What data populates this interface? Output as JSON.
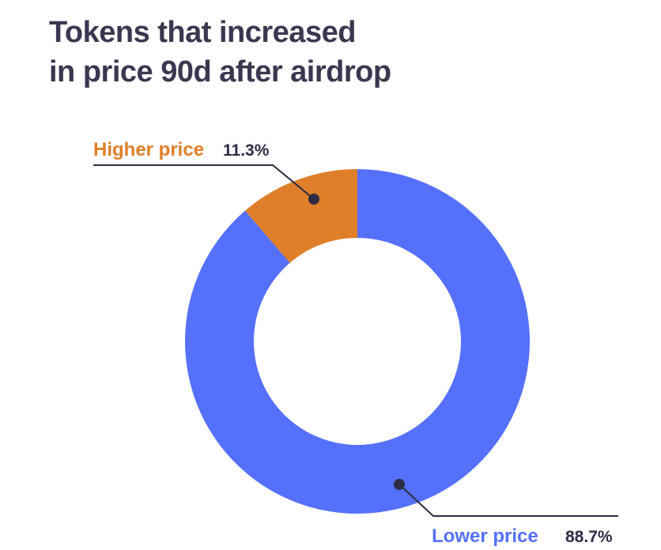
{
  "title": {
    "line1": "Tokens that increased",
    "line2": "in price 90d after airdrop"
  },
  "colors": {
    "title": "#3a3850",
    "higher": "#e07f29",
    "lower": "#5570fb",
    "leader": "#2e2c45",
    "value_text": "#2e2c45"
  },
  "chart_data": {
    "type": "pie",
    "title": "Tokens that increased in price 90d after airdrop",
    "donut": true,
    "start": "12 o'clock",
    "direction": "counterclockwise",
    "slices": [
      {
        "label": "Higher price",
        "value": 11.3,
        "value_label": "11.3%",
        "color": "#e07f29",
        "label_position": "top-left"
      },
      {
        "label": "Lower price",
        "value": 88.7,
        "value_label": "88.7%",
        "color": "#5570fb",
        "label_position": "bottom-right"
      }
    ]
  }
}
